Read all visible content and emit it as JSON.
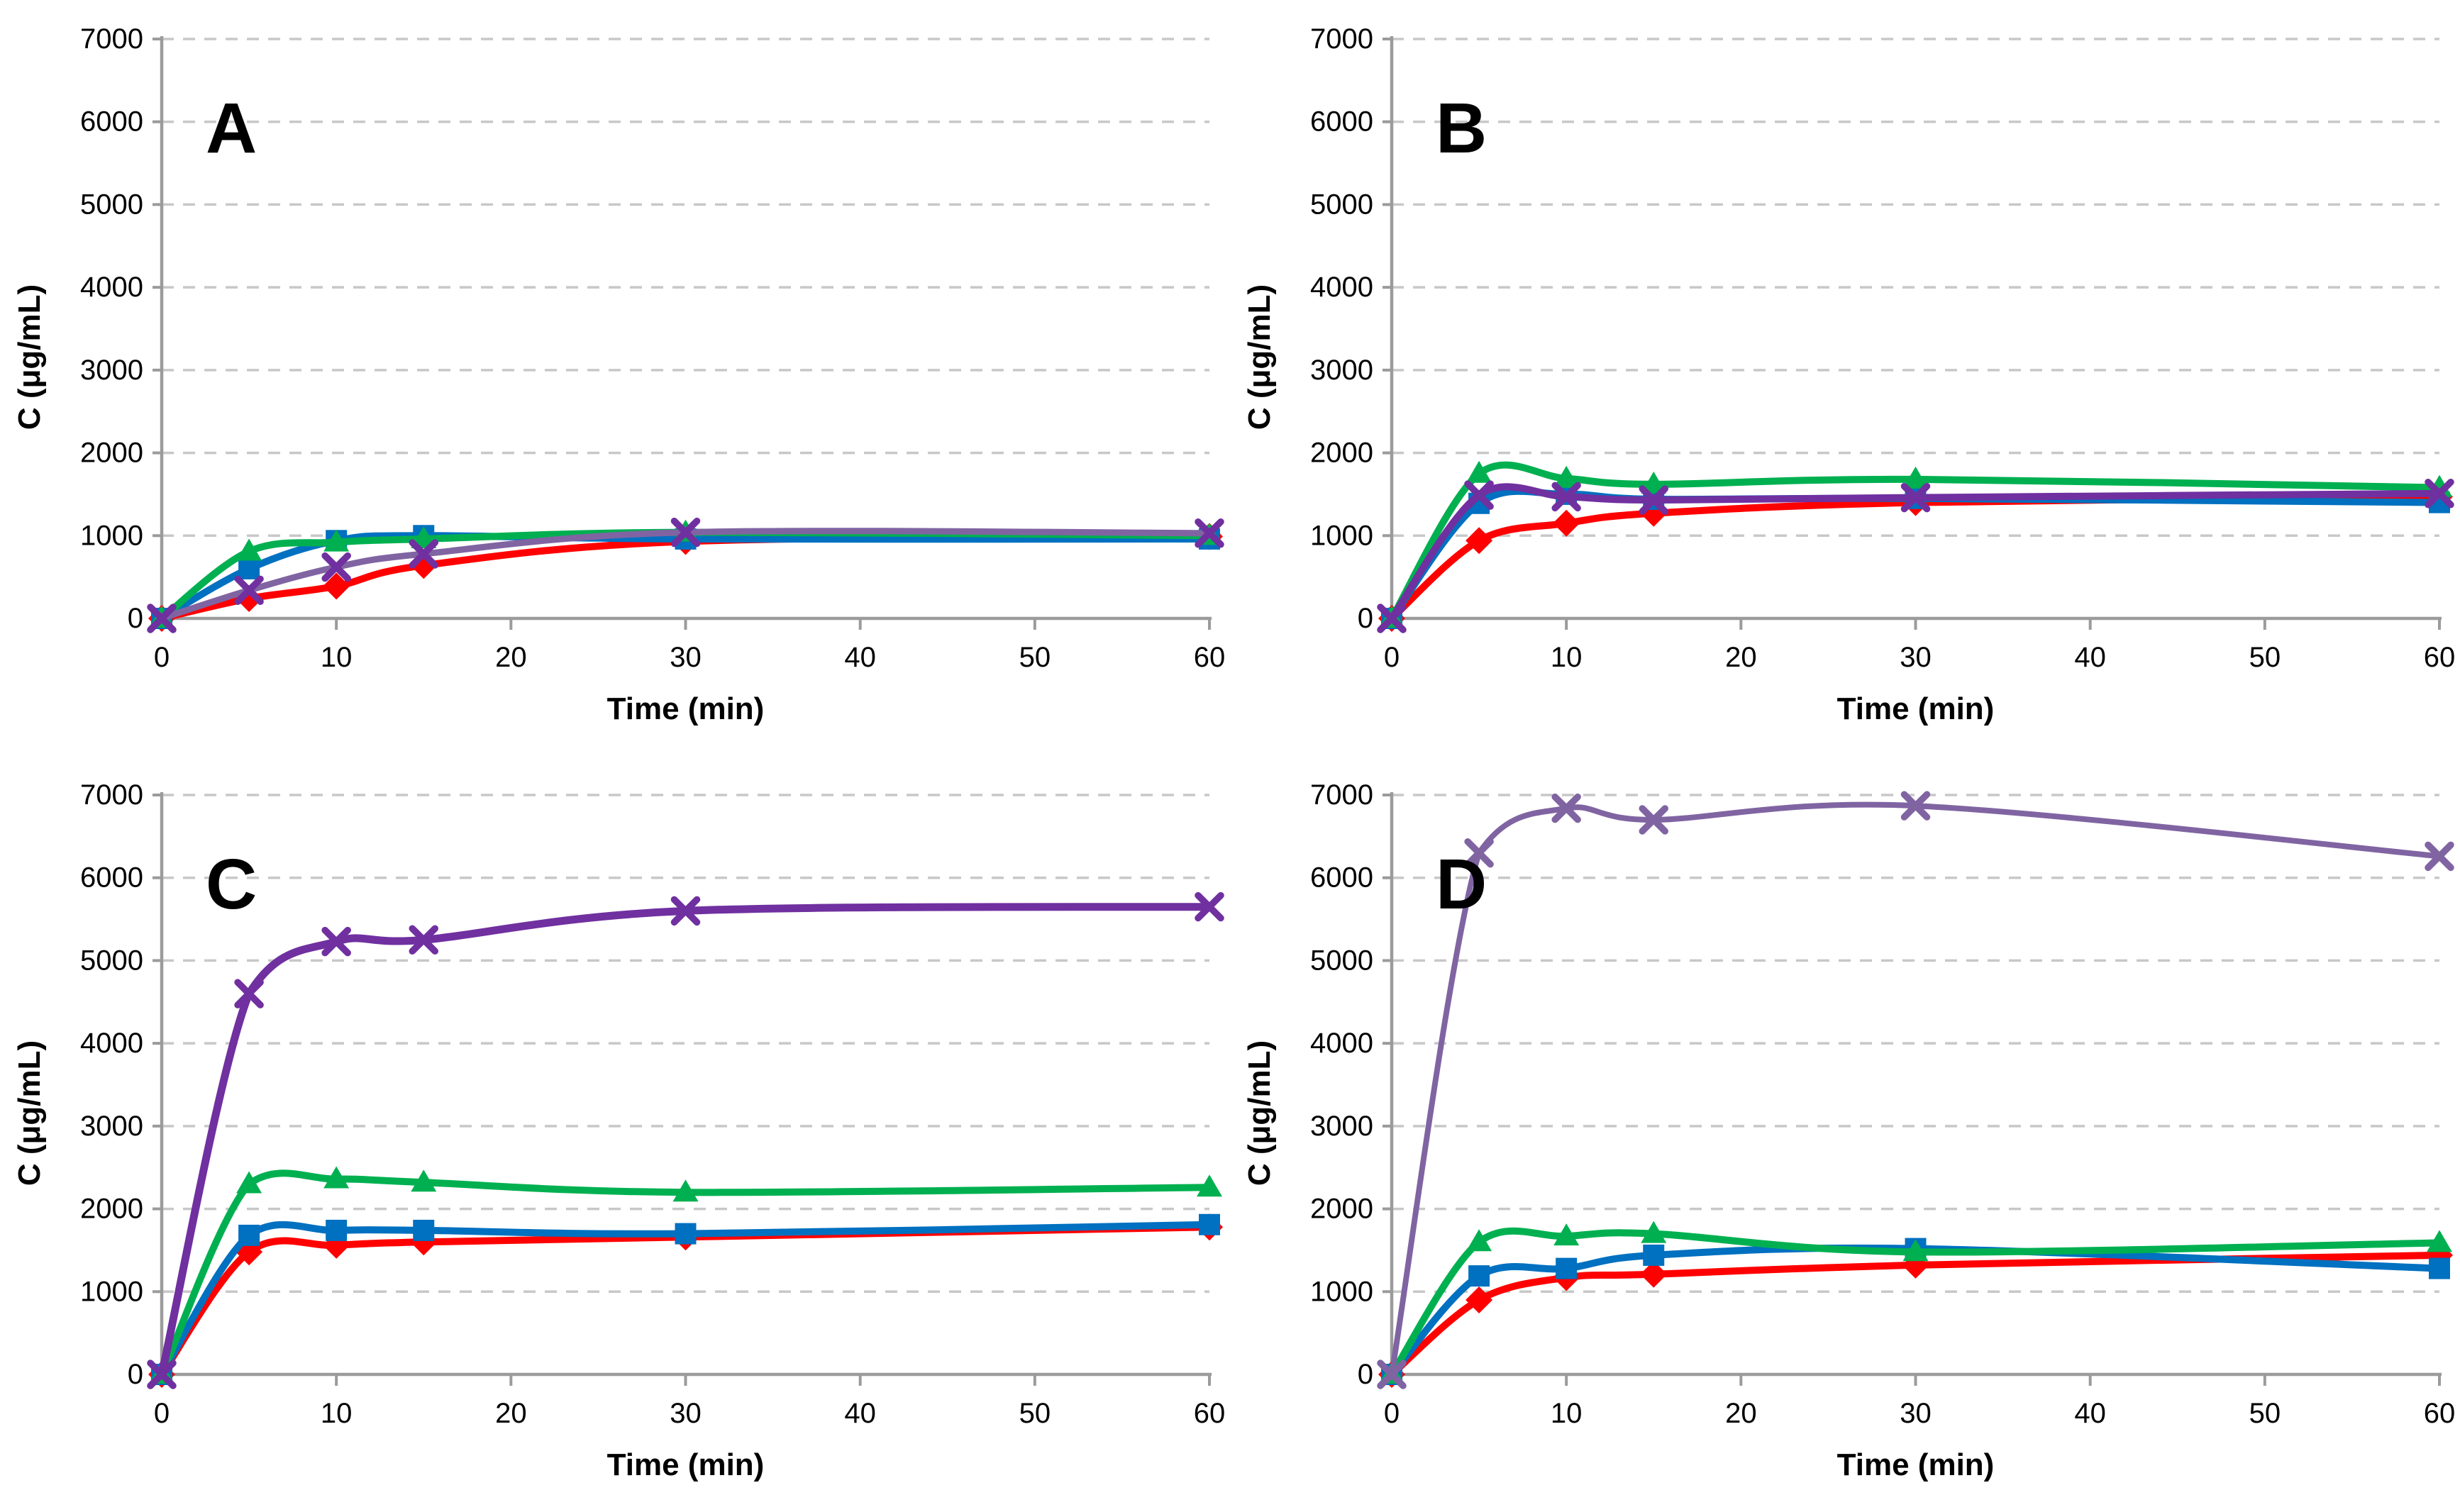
{
  "figure": {
    "background": "#FFFFFF",
    "text_color": "#000000",
    "axis_color": "#9B9B9B",
    "grid_color": "#C8C8C8",
    "x_axis_label": "Time (min)",
    "y_axis_label": "C (μg/mL)",
    "x_ticks": [
      0,
      10,
      20,
      30,
      40,
      50,
      60
    ],
    "y_ticks": [
      0,
      1000,
      2000,
      3000,
      4000,
      5000,
      6000,
      7000
    ],
    "xlim": [
      0,
      60
    ],
    "ylim": [
      0,
      7000
    ],
    "grid_style": "dashed-horizontal",
    "legend": "none"
  },
  "chart_data": [
    {
      "type": "line",
      "panel_label": "A",
      "x": [
        0,
        5,
        10,
        15,
        30,
        60
      ],
      "xlabel": "Time (min)",
      "ylabel": "C (μg/mL)",
      "xlim": [
        0,
        60
      ],
      "ylim": [
        0,
        7000
      ],
      "series": [
        {
          "name": "red-diamond",
          "marker": "diamond",
          "line_color": "#FF0000",
          "marker_color": "#FF0000",
          "line_width": 10,
          "values": [
            0,
            240,
            390,
            640,
            930,
            990
          ]
        },
        {
          "name": "blue-square",
          "marker": "square",
          "line_color": "#0070C0",
          "marker_color": "#0070C0",
          "line_width": 10,
          "values": [
            0,
            600,
            940,
            1000,
            960,
            960
          ]
        },
        {
          "name": "green-triangle",
          "marker": "triangle",
          "line_color": "#00B050",
          "marker_color": "#00B050",
          "line_width": 10,
          "values": [
            0,
            810,
            920,
            960,
            1040,
            1000
          ]
        },
        {
          "name": "purple-x",
          "marker": "x",
          "line_color": "#8064A2",
          "marker_color": "#7030A0",
          "line_width": 9,
          "values": [
            0,
            340,
            620,
            780,
            1040,
            1030
          ]
        }
      ]
    },
    {
      "type": "line",
      "panel_label": "B",
      "x": [
        0,
        5,
        10,
        15,
        30,
        60
      ],
      "xlabel": "Time (min)",
      "ylabel": "C (μg/mL)",
      "xlim": [
        0,
        60
      ],
      "ylim": [
        0,
        7000
      ],
      "series": [
        {
          "name": "red-diamond",
          "marker": "diamond",
          "line_color": "#FF0000",
          "marker_color": "#FF0000",
          "line_width": 10,
          "values": [
            0,
            940,
            1150,
            1270,
            1400,
            1470
          ]
        },
        {
          "name": "blue-square",
          "marker": "square",
          "line_color": "#0070C0",
          "marker_color": "#0070C0",
          "line_width": 10,
          "values": [
            0,
            1390,
            1500,
            1440,
            1450,
            1400
          ]
        },
        {
          "name": "green-triangle",
          "marker": "triangle",
          "line_color": "#00B050",
          "marker_color": "#00B050",
          "line_width": 10,
          "values": [
            0,
            1750,
            1690,
            1620,
            1680,
            1580
          ]
        },
        {
          "name": "purple-x",
          "marker": "x",
          "line_color": "#7030A0",
          "marker_color": "#7030A0",
          "line_width": 10,
          "values": [
            0,
            1490,
            1470,
            1430,
            1460,
            1510
          ]
        }
      ]
    },
    {
      "type": "line",
      "panel_label": "C",
      "x": [
        0,
        5,
        10,
        15,
        30,
        60
      ],
      "xlabel": "Time (min)",
      "ylabel": "C (μg/mL)",
      "xlim": [
        0,
        60
      ],
      "ylim": [
        0,
        7000
      ],
      "series": [
        {
          "name": "red-diamond",
          "marker": "diamond",
          "line_color": "#FF0000",
          "marker_color": "#FF0000",
          "line_width": 10,
          "values": [
            0,
            1480,
            1560,
            1600,
            1660,
            1780
          ]
        },
        {
          "name": "blue-square",
          "marker": "square",
          "line_color": "#0070C0",
          "marker_color": "#0070C0",
          "line_width": 10,
          "values": [
            0,
            1680,
            1740,
            1740,
            1700,
            1810
          ]
        },
        {
          "name": "green-triangle",
          "marker": "triangle",
          "line_color": "#00B050",
          "marker_color": "#00B050",
          "line_width": 10,
          "values": [
            0,
            2300,
            2360,
            2320,
            2200,
            2260
          ]
        },
        {
          "name": "purple-x",
          "marker": "x",
          "line_color": "#7030A0",
          "marker_color": "#7030A0",
          "line_width": 11,
          "values": [
            0,
            4600,
            5230,
            5250,
            5600,
            5650
          ]
        }
      ]
    },
    {
      "type": "line",
      "panel_label": "D",
      "x": [
        0,
        5,
        10,
        15,
        30,
        60
      ],
      "xlabel": "Time (min)",
      "ylabel": "C (μg/mL)",
      "xlim": [
        0,
        60
      ],
      "ylim": [
        0,
        7000
      ],
      "series": [
        {
          "name": "red-diamond",
          "marker": "diamond",
          "line_color": "#FF0000",
          "marker_color": "#FF0000",
          "line_width": 10,
          "values": [
            0,
            900,
            1170,
            1210,
            1320,
            1440
          ]
        },
        {
          "name": "blue-square",
          "marker": "square",
          "line_color": "#0070C0",
          "marker_color": "#0070C0",
          "line_width": 10,
          "values": [
            0,
            1190,
            1280,
            1440,
            1520,
            1280
          ]
        },
        {
          "name": "green-triangle",
          "marker": "triangle",
          "line_color": "#00B050",
          "marker_color": "#00B050",
          "line_width": 10,
          "values": [
            0,
            1600,
            1670,
            1700,
            1480,
            1590
          ]
        },
        {
          "name": "purple-x",
          "marker": "x",
          "line_color": "#8064A2",
          "marker_color": "#8064A2",
          "line_width": 8,
          "values": [
            0,
            6300,
            6840,
            6700,
            6870,
            6260
          ]
        }
      ]
    }
  ]
}
